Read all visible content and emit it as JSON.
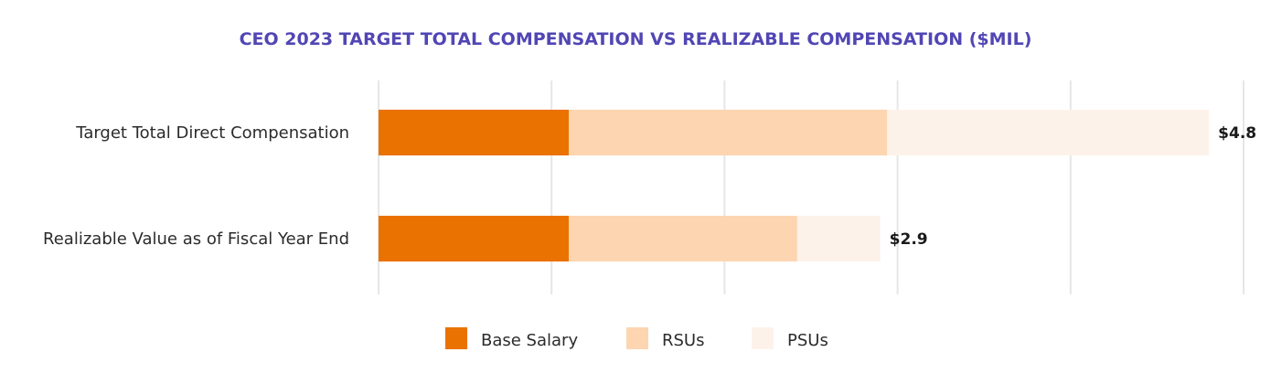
{
  "chart_data": {
    "type": "bar",
    "orientation": "horizontal",
    "stacked": true,
    "title": "CEO 2023 TARGET TOTAL COMPENSATION VS REALIZABLE COMPENSATION ($MIL)",
    "categories": [
      "Target Total Direct Compensation",
      "Realizable Value as of Fiscal Year End"
    ],
    "series": [
      {
        "name": "Base Salary",
        "color": "#ea7200",
        "values": [
          1.1,
          1.1
        ]
      },
      {
        "name": "RSUs",
        "color": "#fdd5b1",
        "values": [
          1.84,
          1.32
        ]
      },
      {
        "name": "PSUs",
        "color": "#fdf2ea",
        "values": [
          1.86,
          0.48
        ]
      }
    ],
    "data_labels": [
      "$4.8",
      "$2.9"
    ],
    "xlim": [
      0,
      5
    ],
    "grid": true,
    "legend_position": "bottom"
  }
}
